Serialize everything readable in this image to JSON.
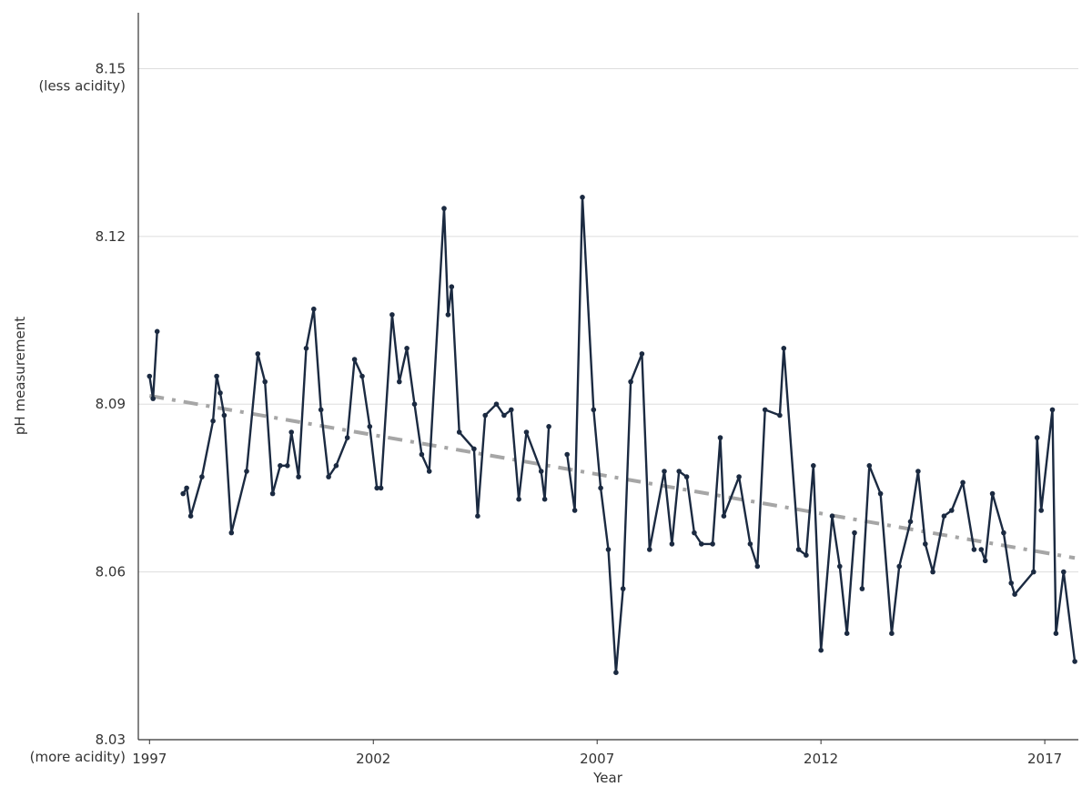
{
  "chart_data": {
    "type": "line",
    "xlabel": "Year",
    "ylabel": "pH measurement",
    "xlim": [
      1996.75,
      2017.75
    ],
    "ylim": [
      8.03,
      8.16
    ],
    "x_ticks": [
      {
        "value": 1997,
        "label": "1997"
      },
      {
        "value": 2002,
        "label": "2002"
      },
      {
        "value": 2007,
        "label": "2007"
      },
      {
        "value": 2012,
        "label": "2012"
      },
      {
        "value": 2017,
        "label": "2017"
      }
    ],
    "y_ticks": [
      {
        "value": 8.03,
        "label": "8.03",
        "sublabel": "(more acidity)"
      },
      {
        "value": 8.06,
        "label": "8.06",
        "sublabel": ""
      },
      {
        "value": 8.09,
        "label": "8.09",
        "sublabel": ""
      },
      {
        "value": 8.12,
        "label": "8.12",
        "sublabel": ""
      },
      {
        "value": 8.15,
        "label": "8.15",
        "sublabel": "(less acidity)"
      }
    ],
    "grid": "horizontal",
    "colors": {
      "series": "#1b2a41",
      "trend": "#a6a6a6",
      "grid": "#dddddd",
      "axis": "#333333"
    },
    "series": [
      {
        "segments": [
          [
            [
              1997.0,
              8.095
            ],
            [
              1997.08,
              8.091
            ],
            [
              1997.17,
              8.103
            ]
          ],
          [
            [
              1997.75,
              8.074
            ],
            [
              1997.83,
              8.075
            ],
            [
              1997.92,
              8.07
            ],
            [
              1998.17,
              8.077
            ],
            [
              1998.42,
              8.087
            ],
            [
              1998.5,
              8.095
            ],
            [
              1998.58,
              8.092
            ],
            [
              1998.67,
              8.088
            ],
            [
              1998.83,
              8.067
            ],
            [
              1999.17,
              8.078
            ],
            [
              1999.42,
              8.099
            ],
            [
              1999.58,
              8.094
            ],
            [
              1999.75,
              8.074
            ],
            [
              1999.92,
              8.079
            ],
            [
              2000.08,
              8.079
            ],
            [
              2000.17,
              8.085
            ],
            [
              2000.33,
              8.077
            ],
            [
              2000.5,
              8.1
            ],
            [
              2000.67,
              8.107
            ],
            [
              2000.83,
              8.089
            ],
            [
              2001.0,
              8.077
            ],
            [
              2001.17,
              8.079
            ],
            [
              2001.42,
              8.084
            ],
            [
              2001.58,
              8.098
            ],
            [
              2001.75,
              8.095
            ],
            [
              2001.92,
              8.086
            ],
            [
              2002.08,
              8.075
            ],
            [
              2002.17,
              8.075
            ],
            [
              2002.42,
              8.106
            ],
            [
              2002.58,
              8.094
            ],
            [
              2002.75,
              8.1
            ],
            [
              2002.92,
              8.09
            ],
            [
              2003.08,
              8.081
            ],
            [
              2003.25,
              8.078
            ],
            [
              2003.58,
              8.125
            ],
            [
              2003.67,
              8.106
            ],
            [
              2003.75,
              8.111
            ],
            [
              2003.92,
              8.085
            ],
            [
              2004.25,
              8.082
            ],
            [
              2004.33,
              8.07
            ],
            [
              2004.5,
              8.088
            ],
            [
              2004.75,
              8.09
            ],
            [
              2004.92,
              8.088
            ],
            [
              2005.08,
              8.089
            ],
            [
              2005.25,
              8.073
            ],
            [
              2005.42,
              8.085
            ],
            [
              2005.75,
              8.078
            ],
            [
              2005.83,
              8.073
            ],
            [
              2005.92,
              8.086
            ]
          ],
          [
            [
              2006.33,
              8.081
            ],
            [
              2006.5,
              8.071
            ],
            [
              2006.67,
              8.127
            ],
            [
              2006.92,
              8.089
            ],
            [
              2007.08,
              8.075
            ],
            [
              2007.25,
              8.064
            ],
            [
              2007.42,
              8.042
            ],
            [
              2007.58,
              8.057
            ],
            [
              2007.75,
              8.094
            ],
            [
              2008.0,
              8.099
            ],
            [
              2008.17,
              8.064
            ],
            [
              2008.5,
              8.078
            ],
            [
              2008.67,
              8.065
            ],
            [
              2008.83,
              8.078
            ],
            [
              2009.0,
              8.077
            ],
            [
              2009.17,
              8.067
            ],
            [
              2009.33,
              8.065
            ],
            [
              2009.58,
              8.065
            ],
            [
              2009.75,
              8.084
            ],
            [
              2009.83,
              8.07
            ],
            [
              2010.17,
              8.077
            ],
            [
              2010.42,
              8.065
            ],
            [
              2010.58,
              8.061
            ],
            [
              2010.75,
              8.089
            ],
            [
              2011.08,
              8.088
            ],
            [
              2011.17,
              8.1
            ],
            [
              2011.5,
              8.064
            ],
            [
              2011.67,
              8.063
            ],
            [
              2011.83,
              8.079
            ],
            [
              2012.0,
              8.046
            ],
            [
              2012.25,
              8.07
            ],
            [
              2012.42,
              8.061
            ],
            [
              2012.58,
              8.049
            ],
            [
              2012.75,
              8.067
            ]
          ],
          [
            [
              2012.92,
              8.057
            ],
            [
              2013.08,
              8.079
            ],
            [
              2013.33,
              8.074
            ],
            [
              2013.58,
              8.049
            ],
            [
              2013.75,
              8.061
            ],
            [
              2014.0,
              8.069
            ],
            [
              2014.17,
              8.078
            ],
            [
              2014.33,
              8.065
            ],
            [
              2014.5,
              8.06
            ],
            [
              2014.75,
              8.07
            ],
            [
              2014.92,
              8.071
            ],
            [
              2015.17,
              8.076
            ],
            [
              2015.42,
              8.064
            ]
          ],
          [
            [
              2015.58,
              8.064
            ],
            [
              2015.67,
              8.062
            ],
            [
              2015.83,
              8.074
            ],
            [
              2016.08,
              8.067
            ],
            [
              2016.25,
              8.058
            ],
            [
              2016.33,
              8.056
            ],
            [
              2016.75,
              8.06
            ],
            [
              2016.83,
              8.084
            ],
            [
              2016.92,
              8.071
            ],
            [
              2017.17,
              8.089
            ],
            [
              2017.25,
              8.049
            ],
            [
              2017.42,
              8.06
            ],
            [
              2017.67,
              8.044
            ]
          ]
        ]
      }
    ],
    "trend": {
      "style": "dash-dot",
      "x": [
        1997.0,
        2017.67
      ],
      "y": [
        8.0915,
        8.0625
      ]
    }
  }
}
